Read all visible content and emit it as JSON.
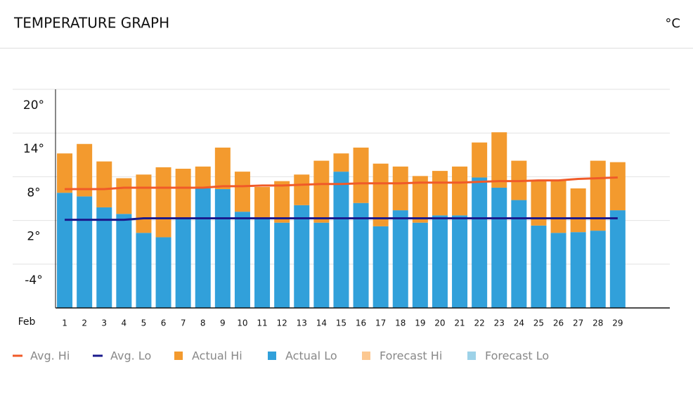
{
  "header": {
    "title": "TEMPERATURE GRAPH",
    "unit": "°C"
  },
  "chart_data": {
    "type": "bar",
    "x_label": "Feb",
    "categories": [
      "1",
      "2",
      "3",
      "4",
      "5",
      "6",
      "7",
      "8",
      "9",
      "10",
      "11",
      "12",
      "13",
      "14",
      "15",
      "16",
      "17",
      "18",
      "19",
      "20",
      "21",
      "22",
      "23",
      "24",
      "25",
      "26",
      "27",
      "28",
      "29"
    ],
    "ylim": [
      -10,
      20
    ],
    "yticks": [
      {
        "value": 20,
        "label": "20°"
      },
      {
        "value": 14,
        "label": "14°"
      },
      {
        "value": 8,
        "label": "8°"
      },
      {
        "value": 2,
        "label": "2°"
      },
      {
        "value": -4,
        "label": "-4°"
      }
    ],
    "grid": true,
    "series": [
      {
        "name": "Avg. Hi",
        "color": "#f05a28",
        "kind": "line",
        "values": [
          6.3,
          6.3,
          6.3,
          6.5,
          6.5,
          6.5,
          6.5,
          6.5,
          6.7,
          6.7,
          6.8,
          6.8,
          6.9,
          7.0,
          7.0,
          7.1,
          7.1,
          7.1,
          7.2,
          7.2,
          7.2,
          7.3,
          7.4,
          7.4,
          7.5,
          7.5,
          7.7,
          7.8,
          7.9
        ]
      },
      {
        "name": "Avg. Lo",
        "color": "#1a1a8c",
        "kind": "line",
        "values": [
          2.1,
          2.1,
          2.1,
          2.1,
          2.3,
          2.3,
          2.3,
          2.3,
          2.3,
          2.3,
          2.3,
          2.3,
          2.3,
          2.3,
          2.3,
          2.3,
          2.3,
          2.3,
          2.3,
          2.3,
          2.3,
          2.3,
          2.3,
          2.3,
          2.3,
          2.3,
          2.3,
          2.3,
          2.3
        ]
      },
      {
        "name": "Actual Hi",
        "color": "#f39a2e",
        "kind": "bar",
        "values": [
          11.2,
          12.5,
          10.1,
          7.8,
          8.3,
          9.3,
          9.1,
          9.4,
          12.0,
          8.7,
          6.6,
          7.4,
          8.3,
          10.2,
          11.2,
          12.0,
          9.8,
          9.4,
          8.1,
          8.8,
          9.4,
          12.7,
          14.1,
          10.2,
          7.5,
          7.5,
          6.4,
          10.2,
          10.0
        ]
      },
      {
        "name": "Actual Lo",
        "color": "#31a0da",
        "kind": "bar",
        "values": [
          5.8,
          5.3,
          3.8,
          2.9,
          0.3,
          -0.3,
          2.3,
          6.4,
          6.3,
          3.2,
          2.3,
          1.7,
          4.1,
          1.7,
          8.7,
          4.4,
          1.2,
          3.4,
          1.7,
          2.7,
          2.7,
          7.9,
          6.5,
          4.8,
          1.3,
          0.3,
          0.4,
          0.6,
          3.4
        ]
      },
      {
        "name": "Forecast Hi",
        "color": "#fcc891",
        "kind": "bar",
        "values": [
          null,
          null,
          null,
          null,
          null,
          null,
          null,
          null,
          null,
          null,
          null,
          null,
          null,
          null,
          null,
          null,
          null,
          null,
          null,
          null,
          null,
          null,
          null,
          null,
          null,
          null,
          null,
          null,
          null
        ]
      },
      {
        "name": "Forecast Lo",
        "color": "#9dd2e8",
        "kind": "bar",
        "values": [
          null,
          null,
          null,
          null,
          null,
          null,
          null,
          null,
          null,
          null,
          null,
          null,
          null,
          null,
          null,
          null,
          null,
          null,
          null,
          null,
          null,
          null,
          null,
          null,
          null,
          null,
          null,
          null,
          null
        ]
      }
    ]
  }
}
